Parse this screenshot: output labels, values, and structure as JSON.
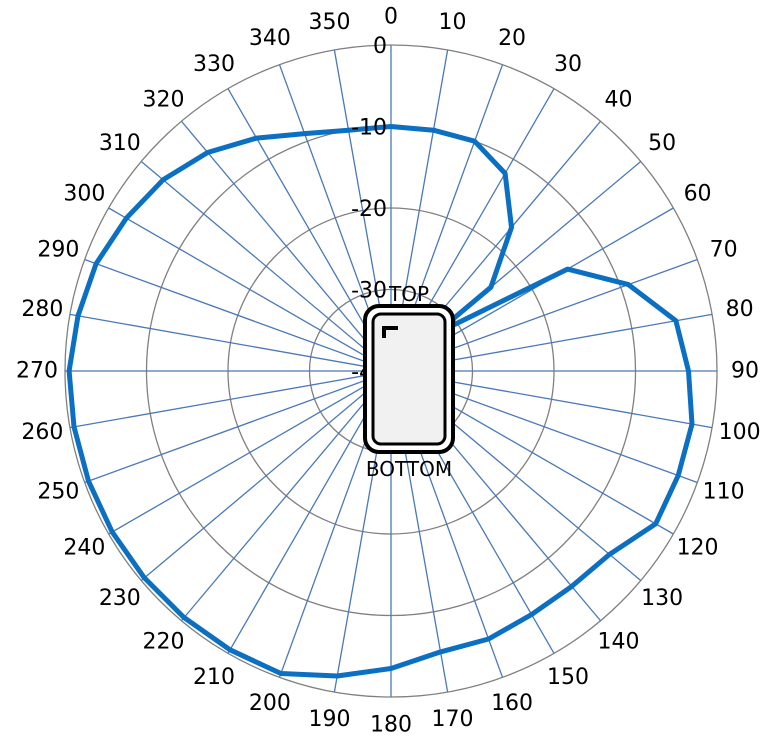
{
  "chart_data": {
    "type": "polar-line",
    "angle_labels": [
      "0",
      "10",
      "20",
      "30",
      "40",
      "50",
      "60",
      "70",
      "80",
      "90",
      "100",
      "110",
      "120",
      "130",
      "140",
      "150",
      "160",
      "170",
      "180",
      "190",
      "200",
      "210",
      "220",
      "230",
      "240",
      "250",
      "260",
      "270",
      "280",
      "290",
      "300",
      "310",
      "320",
      "330",
      "340",
      "350"
    ],
    "radial_axis": {
      "min": -40,
      "max": 0,
      "tick_labels": [
        "0",
        "-10",
        "-20",
        "-30",
        "-40"
      ]
    },
    "series": [
      {
        "color": "#0b6fc2",
        "points": [
          {
            "angle": 0,
            "value": -10
          },
          {
            "angle": 10,
            "value": -10
          },
          {
            "angle": 20,
            "value": -10
          },
          {
            "angle": 30,
            "value": -12
          },
          {
            "angle": 40,
            "value": -17
          },
          {
            "angle": 50,
            "value": -24
          },
          {
            "angle": 50,
            "value": -33
          },
          {
            "angle": 60,
            "value": -15
          },
          {
            "angle": 70,
            "value": -9
          },
          {
            "angle": 80,
            "value": -4.5
          },
          {
            "angle": 90,
            "value": -3.5
          },
          {
            "angle": 100,
            "value": -2.5
          },
          {
            "angle": 110,
            "value": -2.5
          },
          {
            "angle": 120,
            "value": -2.5
          },
          {
            "angle": 130,
            "value": -5
          },
          {
            "angle": 140,
            "value": -5.5
          },
          {
            "angle": 150,
            "value": -5.5
          },
          {
            "angle": 160,
            "value": -5
          },
          {
            "angle": 170,
            "value": -5
          },
          {
            "angle": 180,
            "value": -3.5
          },
          {
            "angle": 190,
            "value": -2
          },
          {
            "angle": 200,
            "value": -0.5
          },
          {
            "angle": 210,
            "value": -0.5
          },
          {
            "angle": 220,
            "value": -0.5
          },
          {
            "angle": 230,
            "value": -0.5
          },
          {
            "angle": 240,
            "value": -0.5
          },
          {
            "angle": 250,
            "value": -0.5
          },
          {
            "angle": 260,
            "value": -0.5
          },
          {
            "angle": 270,
            "value": -0.5
          },
          {
            "angle": 280,
            "value": -1
          },
          {
            "angle": 290,
            "value": -1.5
          },
          {
            "angle": 300,
            "value": -2.5
          },
          {
            "angle": 310,
            "value": -3.5
          },
          {
            "angle": 320,
            "value": -5
          },
          {
            "angle": 330,
            "value": -7
          },
          {
            "angle": 340,
            "value": -9
          },
          {
            "angle": 350,
            "value": -10
          },
          {
            "angle": 360,
            "value": -10
          }
        ]
      }
    ],
    "grid": true,
    "device_labels": {
      "top": "TOP",
      "bottom": "BOTTOM"
    }
  }
}
